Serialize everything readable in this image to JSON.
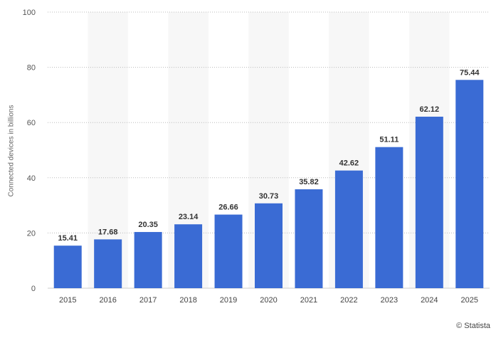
{
  "chart_data": {
    "type": "bar",
    "categories": [
      "2015",
      "2016",
      "2017",
      "2018",
      "2019",
      "2020",
      "2021",
      "2022",
      "2023",
      "2024",
      "2025"
    ],
    "values": [
      15.41,
      17.68,
      20.35,
      23.14,
      26.66,
      30.73,
      35.82,
      42.62,
      51.11,
      62.12,
      75.44
    ],
    "data_labels": [
      "15.41",
      "17.68",
      "20.35",
      "23.14",
      "26.66",
      "30.73",
      "35.82",
      "42.62",
      "51.11",
      "62.12",
      "75.44"
    ],
    "ylabel": "Connected devices in billions",
    "xlabel": "",
    "ylim": [
      0,
      100
    ],
    "yticks": [
      0,
      20,
      40,
      60,
      80,
      100
    ],
    "grid": true,
    "bar_color": "#3a6bd4",
    "alt_band_color": "#f7f7f7"
  },
  "credit": "© Statista"
}
